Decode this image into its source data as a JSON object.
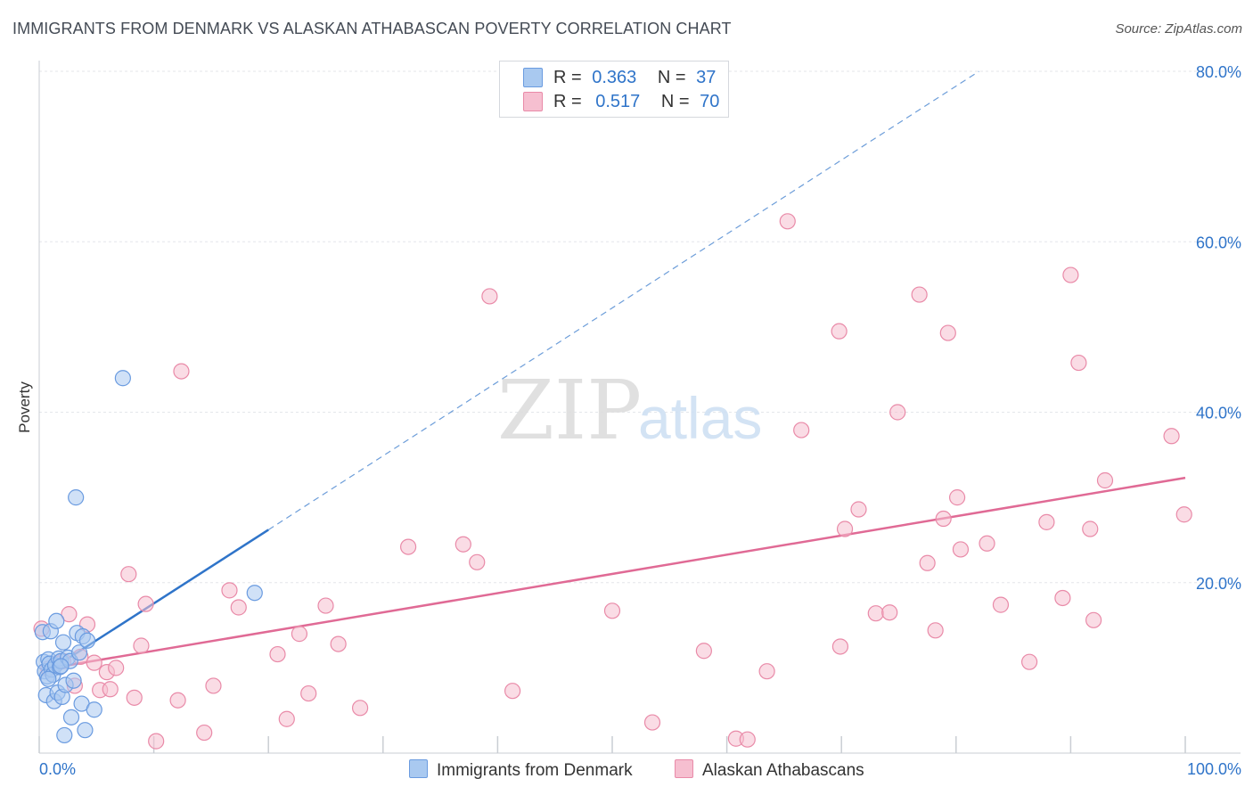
{
  "title": "IMMIGRANTS FROM DENMARK VS ALASKAN ATHABASCAN POVERTY CORRELATION CHART",
  "source": "Source: ZipAtlas.com",
  "watermark": {
    "zip": "ZIP",
    "atlas": "atlas"
  },
  "legend": {
    "series1": {
      "r_label": "R =",
      "r_value": "0.363",
      "n_label": "N =",
      "n_value": "37"
    },
    "series2": {
      "r_label": "R =",
      "r_value": "0.517",
      "n_label": "N =",
      "n_value": "70"
    }
  },
  "colors": {
    "blue_fill": "#a9c9f0",
    "blue_stroke": "#6a9be0",
    "blue_line": "#2f74c9",
    "pink_fill": "#f6bfd0",
    "pink_stroke": "#e98aa8",
    "pink_line": "#e06a95",
    "axis_text": "#2f74c9",
    "grid": "#e3e6ea"
  },
  "chart_data": {
    "type": "scatter",
    "title": "IMMIGRANTS FROM DENMARK VS ALASKAN ATHABASCAN POVERTY CORRELATION CHART",
    "xlabel": "",
    "ylabel": "Poverty",
    "xlim": [
      0,
      100
    ],
    "ylim": [
      0,
      80
    ],
    "x_tick_labels": [
      "0.0%",
      "100.0%"
    ],
    "y_ticks": [
      20,
      40,
      60,
      80
    ],
    "y_tick_labels": [
      "20.0%",
      "40.0%",
      "60.0%",
      "80.0%"
    ],
    "grid": true,
    "series": [
      {
        "name": "Immigrants from Denmark",
        "color": "blue",
        "trend": {
          "x": [
            0.2,
            20
          ],
          "y": [
            9.1,
            26.2
          ],
          "extended_x": [
            20,
            82
          ],
          "extended_y": [
            26.2,
            80
          ]
        },
        "points": [
          [
            0.3,
            14.2
          ],
          [
            0.4,
            10.7
          ],
          [
            0.5,
            9.6
          ],
          [
            0.6,
            6.8
          ],
          [
            0.7,
            9.0
          ],
          [
            0.8,
            11.0
          ],
          [
            0.9,
            10.5
          ],
          [
            1.0,
            14.3
          ],
          [
            1.1,
            9.8
          ],
          [
            1.2,
            9.2
          ],
          [
            1.3,
            6.1
          ],
          [
            1.4,
            10.3
          ],
          [
            1.5,
            15.5
          ],
          [
            1.6,
            7.1
          ],
          [
            1.7,
            11.1
          ],
          [
            1.8,
            10.1
          ],
          [
            1.9,
            10.8
          ],
          [
            2.0,
            6.6
          ],
          [
            2.1,
            13.0
          ],
          [
            2.2,
            2.1
          ],
          [
            2.3,
            8.0
          ],
          [
            2.5,
            11.2
          ],
          [
            2.7,
            10.8
          ],
          [
            2.8,
            4.2
          ],
          [
            3.0,
            8.5
          ],
          [
            3.2,
            30.0
          ],
          [
            3.3,
            14.1
          ],
          [
            3.5,
            11.8
          ],
          [
            3.7,
            5.8
          ],
          [
            3.8,
            13.7
          ],
          [
            4.0,
            2.7
          ],
          [
            4.2,
            13.2
          ],
          [
            4.8,
            5.1
          ],
          [
            7.3,
            44.0
          ],
          [
            1.9,
            10.2
          ],
          [
            0.8,
            8.7
          ],
          [
            18.8,
            18.8
          ]
        ]
      },
      {
        "name": "Alaskan Athabascans",
        "color": "pink",
        "trend": {
          "x": [
            2.0,
            100
          ],
          "y": [
            10.2,
            32.3
          ]
        },
        "points": [
          [
            0.2,
            14.6
          ],
          [
            0.8,
            9.9
          ],
          [
            1.5,
            10.5
          ],
          [
            2.1,
            10.8
          ],
          [
            2.6,
            16.3
          ],
          [
            3.1,
            7.9
          ],
          [
            3.6,
            11.3
          ],
          [
            4.2,
            15.1
          ],
          [
            4.8,
            10.6
          ],
          [
            5.3,
            7.4
          ],
          [
            5.9,
            9.5
          ],
          [
            6.2,
            7.5
          ],
          [
            6.7,
            10.0
          ],
          [
            7.8,
            21.0
          ],
          [
            8.3,
            6.5
          ],
          [
            8.9,
            12.6
          ],
          [
            9.3,
            17.5
          ],
          [
            10.2,
            1.4
          ],
          [
            12.1,
            6.2
          ],
          [
            12.4,
            44.8
          ],
          [
            14.4,
            2.4
          ],
          [
            15.2,
            7.9
          ],
          [
            16.6,
            19.1
          ],
          [
            17.4,
            17.1
          ],
          [
            20.8,
            11.6
          ],
          [
            21.6,
            4.0
          ],
          [
            22.7,
            14.0
          ],
          [
            23.5,
            7.0
          ],
          [
            25.0,
            17.3
          ],
          [
            26.1,
            12.8
          ],
          [
            28.0,
            5.3
          ],
          [
            32.2,
            24.2
          ],
          [
            37.0,
            24.5
          ],
          [
            38.2,
            22.4
          ],
          [
            39.3,
            53.6
          ],
          [
            41.3,
            7.3
          ],
          [
            50.0,
            16.7
          ],
          [
            53.5,
            3.6
          ],
          [
            58.0,
            12.0
          ],
          [
            60.8,
            1.7
          ],
          [
            61.8,
            1.6
          ],
          [
            65.3,
            62.4
          ],
          [
            66.5,
            37.9
          ],
          [
            69.9,
            12.5
          ],
          [
            70.3,
            26.3
          ],
          [
            71.5,
            28.6
          ],
          [
            73.0,
            16.4
          ],
          [
            74.2,
            16.5
          ],
          [
            74.9,
            40.0
          ],
          [
            76.8,
            53.8
          ],
          [
            77.5,
            22.3
          ],
          [
            78.2,
            14.4
          ],
          [
            78.9,
            27.5
          ],
          [
            79.3,
            49.3
          ],
          [
            80.1,
            30.0
          ],
          [
            80.4,
            23.9
          ],
          [
            82.7,
            24.6
          ],
          [
            83.9,
            17.4
          ],
          [
            86.4,
            10.7
          ],
          [
            87.9,
            27.1
          ],
          [
            89.3,
            18.2
          ],
          [
            90.0,
            56.1
          ],
          [
            90.7,
            45.8
          ],
          [
            91.7,
            26.3
          ],
          [
            92.0,
            15.6
          ],
          [
            93.0,
            32.0
          ],
          [
            98.8,
            37.2
          ],
          [
            99.9,
            28.0
          ],
          [
            69.8,
            49.5
          ],
          [
            63.5,
            9.6
          ]
        ]
      }
    ]
  }
}
